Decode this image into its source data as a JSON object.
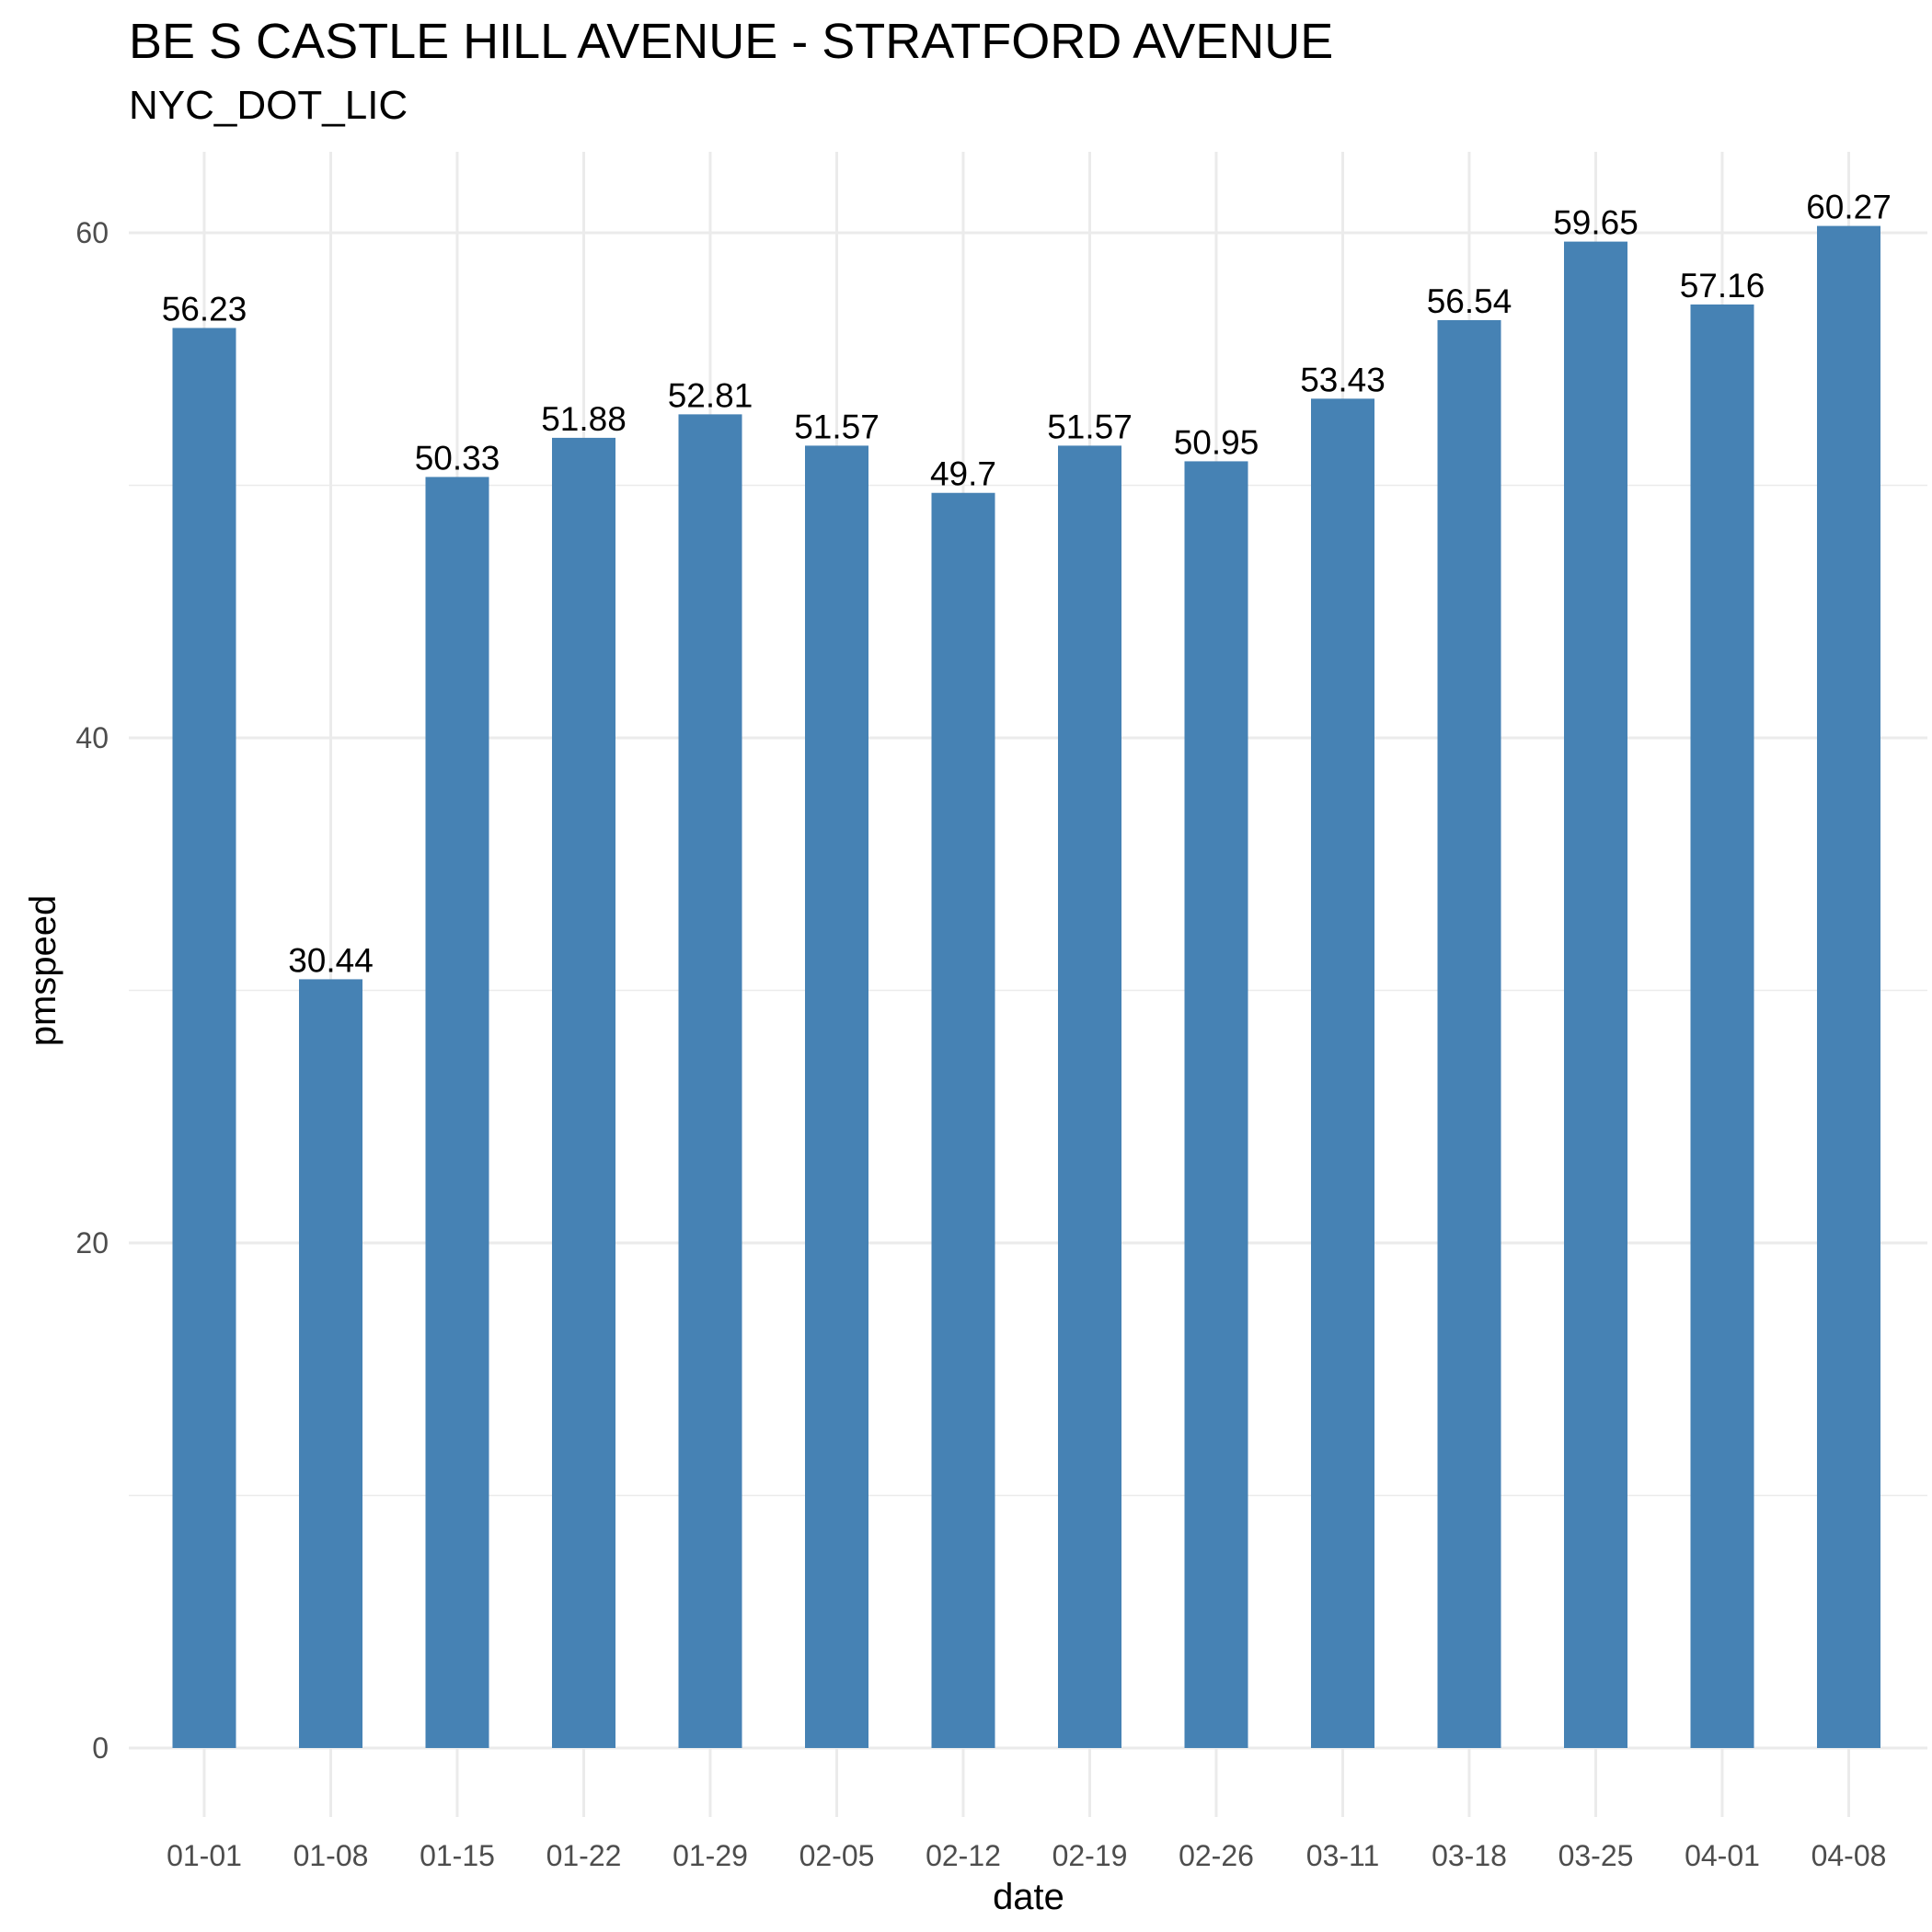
{
  "chart_data": {
    "type": "bar",
    "title": "BE S CASTLE HILL AVENUE - STRATFORD AVENUE",
    "subtitle": "NYC_DOT_LIC",
    "xlabel": "date",
    "ylabel": "pmspeed",
    "categories": [
      "01-01",
      "01-08",
      "01-15",
      "01-22",
      "01-29",
      "02-05",
      "02-12",
      "02-19",
      "02-26",
      "03-11",
      "03-18",
      "03-25",
      "04-01",
      "04-08"
    ],
    "values": [
      56.23,
      30.44,
      50.33,
      51.88,
      52.81,
      51.57,
      49.7,
      51.57,
      50.95,
      53.43,
      56.54,
      59.65,
      57.16,
      60.27
    ],
    "value_labels": [
      "56.23",
      "30.44",
      "50.33",
      "51.88",
      "52.81",
      "51.57",
      "49.7",
      "51.57",
      "50.95",
      "53.43",
      "56.54",
      "59.65",
      "57.16",
      "60.27"
    ],
    "ylim": [
      0,
      63.3
    ],
    "yticks": [
      0,
      20,
      40,
      60
    ],
    "grid": true,
    "bar_color": "#4682B4",
    "grid_color": "#ebebeb"
  }
}
